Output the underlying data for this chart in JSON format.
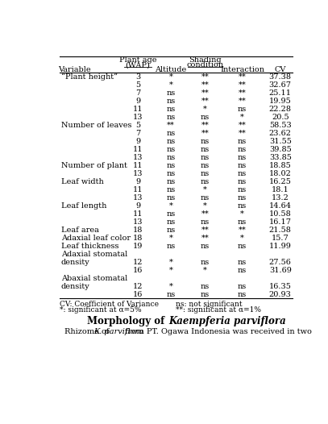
{
  "rows": [
    [
      "“Plant height”",
      "3",
      "*",
      "**",
      "**",
      "37.38"
    ],
    [
      "",
      "5",
      "*",
      "**",
      "**",
      "32.67"
    ],
    [
      "",
      "7",
      "ns",
      "**",
      "**",
      "25.11"
    ],
    [
      "",
      "9",
      "ns",
      "**",
      "**",
      "19.95"
    ],
    [
      "",
      "11",
      "ns",
      "*",
      "ns",
      "22.28"
    ],
    [
      "",
      "13",
      "ns",
      "ns",
      "*",
      "20.5"
    ],
    [
      "Number of leaves",
      "5",
      "**",
      "**",
      "**",
      "58.53"
    ],
    [
      "",
      "7",
      "ns",
      "**",
      "**",
      "23.62"
    ],
    [
      "",
      "9",
      "ns",
      "ns",
      "ns",
      "31.55"
    ],
    [
      "",
      "11",
      "ns",
      "ns",
      "ns",
      "39.85"
    ],
    [
      "",
      "13",
      "ns",
      "ns",
      "ns",
      "33.85"
    ],
    [
      "Number of plant",
      "11",
      "ns",
      "ns",
      "ns",
      "18.85"
    ],
    [
      "",
      "13",
      "ns",
      "ns",
      "ns",
      "18.02"
    ],
    [
      "Leaf width",
      "9",
      "ns",
      "ns",
      "ns",
      "16.25"
    ],
    [
      "",
      "11",
      "ns",
      "*",
      "ns",
      "18.1"
    ],
    [
      "",
      "13",
      "ns",
      "ns",
      "ns",
      "13.2"
    ],
    [
      "Leaf length",
      "9",
      "*",
      "*",
      "ns",
      "14.64"
    ],
    [
      "",
      "11",
      "ns",
      "**",
      "*",
      "10.58"
    ],
    [
      "",
      "13",
      "ns",
      "ns",
      "ns",
      "16.17"
    ],
    [
      "Leaf area",
      "18",
      "ns",
      "**",
      "**",
      "21.58"
    ],
    [
      "Adaxial leaf color",
      "18",
      "*",
      "**",
      "*",
      "15.7"
    ],
    [
      "Leaf thickness",
      "19",
      "ns",
      "ns",
      "ns",
      "11.99"
    ],
    [
      "Adaxial stomatal",
      "",
      "",
      "",
      "",
      ""
    ],
    [
      "  density",
      "12",
      "*",
      "ns",
      "ns",
      "27.56"
    ],
    [
      "",
      "16",
      "*",
      "*",
      "ns",
      "31.69"
    ],
    [
      "Abaxial stomatal",
      "",
      "",
      "",
      "",
      ""
    ],
    [
      "  density",
      "12",
      "*",
      "ns",
      "ns",
      "16.35"
    ],
    [
      "",
      "16",
      "ns",
      "ns",
      "ns",
      "20.93"
    ]
  ],
  "footnote1": "CV: Coefficient of Variance",
  "footnote2": "*: significant at α=5%",
  "footnote3": "ns: not significant",
  "footnote4": "**: significant at α=1%",
  "background_color": "#ffffff",
  "font_size": 7.0
}
